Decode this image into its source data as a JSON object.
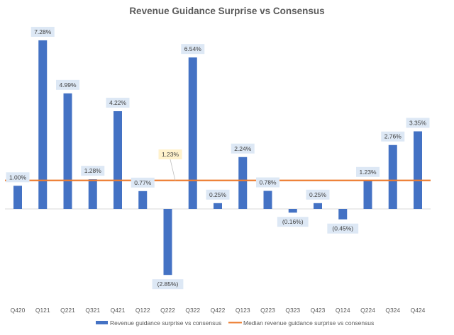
{
  "chart_data": {
    "type": "bar",
    "title": "Revenue Guidance Surprise vs Consensus",
    "xlabel": "",
    "ylabel": "",
    "categories": [
      "Q420",
      "Q121",
      "Q221",
      "Q321",
      "Q421",
      "Q122",
      "Q222",
      "Q322",
      "Q422",
      "Q123",
      "Q223",
      "Q323",
      "Q423",
      "Q124",
      "Q224",
      "Q324",
      "Q424"
    ],
    "series": [
      {
        "name": "Revenue guidance surprise vs consensus",
        "type": "bar",
        "color": "#4472c4",
        "values": [
          1.0,
          7.28,
          4.99,
          1.28,
          4.22,
          0.77,
          -2.85,
          6.54,
          0.25,
          2.24,
          0.78,
          -0.16,
          0.25,
          -0.45,
          1.23,
          2.76,
          3.35
        ],
        "labels": [
          "1.00%",
          "7.28%",
          "4.99%",
          "1.28%",
          "4.22%",
          "0.77%",
          "(2.85%)",
          "6.54%",
          "0.25%",
          "2.24%",
          "0.78%",
          "(0.16%)",
          "0.25%",
          "(0.45%)",
          "1.23%",
          "2.76%",
          "3.35%"
        ]
      },
      {
        "name": "Median revenue guidance surprise vs consensus",
        "type": "line",
        "color": "#ed7d31",
        "value": 1.23,
        "label": "1.23%"
      }
    ],
    "unit": "%",
    "grid": false,
    "legend": "bottom"
  }
}
